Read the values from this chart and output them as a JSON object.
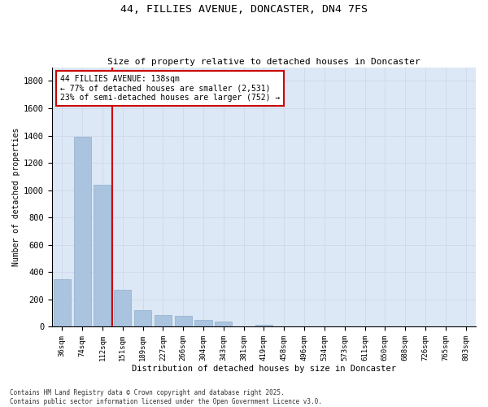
{
  "title_line1": "44, FILLIES AVENUE, DONCASTER, DN4 7FS",
  "title_line2": "Size of property relative to detached houses in Doncaster",
  "xlabel": "Distribution of detached houses by size in Doncaster",
  "ylabel": "Number of detached properties",
  "annotation_title": "44 FILLIES AVENUE: 138sqm",
  "annotation_line2": "← 77% of detached houses are smaller (2,531)",
  "annotation_line3": "23% of semi-detached houses are larger (752) →",
  "footer_line1": "Contains HM Land Registry data © Crown copyright and database right 2025.",
  "footer_line2": "Contains public sector information licensed under the Open Government Licence v3.0.",
  "bins": [
    "36sqm",
    "74sqm",
    "112sqm",
    "151sqm",
    "189sqm",
    "227sqm",
    "266sqm",
    "304sqm",
    "343sqm",
    "381sqm",
    "419sqm",
    "458sqm",
    "496sqm",
    "534sqm",
    "573sqm",
    "611sqm",
    "650sqm",
    "688sqm",
    "726sqm",
    "765sqm",
    "803sqm"
  ],
  "values": [
    350,
    1390,
    1040,
    270,
    120,
    85,
    80,
    50,
    40,
    0,
    15,
    0,
    0,
    0,
    0,
    0,
    0,
    0,
    0,
    0,
    0
  ],
  "bar_color": "#aac4e0",
  "bar_edge_color": "#8faecb",
  "grid_color": "#d0d8e8",
  "bg_color": "#dce8f5",
  "vline_color": "#cc0000",
  "annotation_box_color": "#cc0000",
  "ylim": [
    0,
    1900
  ],
  "yticks": [
    0,
    200,
    400,
    600,
    800,
    1000,
    1200,
    1400,
    1600,
    1800
  ],
  "vline_x": 2.5
}
